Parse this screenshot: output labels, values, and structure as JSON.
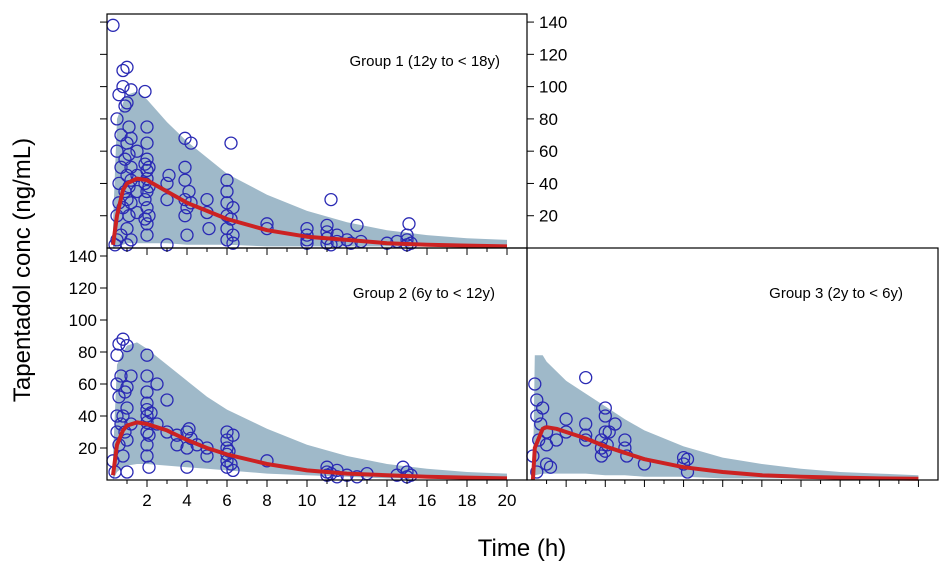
{
  "figure": {
    "ylabel": "Tapentadol conc (ng/mL)",
    "xlabel": "Time (h)"
  },
  "colors": {
    "band": "#9fb9c9",
    "median": "#cc2222",
    "points": "#2a2ab4",
    "frame": "#000000"
  },
  "chart_data": [
    {
      "type": "scatter",
      "title": "Group 1 (12y to < 18y)",
      "xlim": [
        0,
        21
      ],
      "ylim": [
        0,
        145
      ],
      "x_ticks": [
        2,
        4,
        6,
        8,
        10,
        12,
        14,
        16,
        18,
        20
      ],
      "y_ticks": [
        20,
        40,
        60,
        80,
        100,
        120,
        140
      ],
      "y_tick_labels": [
        "20",
        "40",
        "60",
        "80",
        "100",
        "120",
        "140"
      ],
      "y_axis_side": "right",
      "x_tick_labels_shown": false,
      "band": {
        "x": [
          0.3,
          0.5,
          0.8,
          1.0,
          1.5,
          2,
          3,
          4,
          5,
          6,
          8,
          10,
          12,
          14,
          16,
          18,
          20
        ],
        "upper": [
          15,
          80,
          90,
          95,
          97,
          92,
          78,
          66,
          56,
          46,
          33,
          23,
          16,
          11,
          8,
          6,
          5
        ],
        "lower": [
          0,
          1,
          2,
          3,
          3,
          3,
          3,
          2,
          2,
          2,
          1,
          1,
          1,
          1,
          1,
          1,
          1
        ]
      },
      "median": {
        "x": [
          0.3,
          0.5,
          0.8,
          1.0,
          1.5,
          2,
          3,
          4,
          5,
          6,
          8,
          10,
          12,
          14,
          16,
          18,
          20
        ],
        "y": [
          2,
          20,
          36,
          40,
          43,
          42,
          35,
          28,
          23,
          18,
          11,
          7,
          5,
          3,
          2,
          1.5,
          1
        ]
      },
      "points": [
        [
          0.3,
          138
        ],
        [
          0.4,
          2
        ],
        [
          0.5,
          5
        ],
        [
          0.5,
          20
        ],
        [
          0.5,
          60
        ],
        [
          0.5,
          80
        ],
        [
          0.6,
          28
        ],
        [
          0.6,
          40
        ],
        [
          0.6,
          95
        ],
        [
          0.7,
          8
        ],
        [
          0.7,
          50
        ],
        [
          0.7,
          70
        ],
        [
          0.8,
          25
        ],
        [
          0.8,
          100
        ],
        [
          0.8,
          110
        ],
        [
          0.9,
          35
        ],
        [
          0.9,
          55
        ],
        [
          0.9,
          88
        ],
        [
          1.0,
          2
        ],
        [
          1.0,
          12
        ],
        [
          1.0,
          30
        ],
        [
          1.0,
          45
        ],
        [
          1.0,
          65
        ],
        [
          1.0,
          90
        ],
        [
          1.0,
          112
        ],
        [
          1.1,
          20
        ],
        [
          1.1,
          38
        ],
        [
          1.1,
          58
        ],
        [
          1.1,
          75
        ],
        [
          1.2,
          5
        ],
        [
          1.2,
          28
        ],
        [
          1.2,
          42
        ],
        [
          1.2,
          50
        ],
        [
          1.2,
          68
        ],
        [
          1.2,
          98
        ],
        [
          1.5,
          22
        ],
        [
          1.5,
          35
        ],
        [
          1.5,
          45
        ],
        [
          1.5,
          60
        ],
        [
          1.9,
          18
        ],
        [
          1.9,
          30
        ],
        [
          1.9,
          40
        ],
        [
          1.9,
          52
        ],
        [
          1.9,
          97
        ],
        [
          2.0,
          8
        ],
        [
          2.0,
          15
        ],
        [
          2.0,
          25
        ],
        [
          2.0,
          35
        ],
        [
          2.0,
          43
        ],
        [
          2.0,
          48
        ],
        [
          2.0,
          55
        ],
        [
          2.0,
          65
        ],
        [
          2.0,
          75
        ],
        [
          2.1,
          20
        ],
        [
          2.1,
          38
        ],
        [
          2.1,
          50
        ],
        [
          3.0,
          30
        ],
        [
          3.0,
          40
        ],
        [
          3.1,
          45
        ],
        [
          3.0,
          2
        ],
        [
          3.9,
          20
        ],
        [
          3.9,
          30
        ],
        [
          3.9,
          42
        ],
        [
          3.9,
          50
        ],
        [
          3.9,
          68
        ],
        [
          4.0,
          8
        ],
        [
          4.0,
          25
        ],
        [
          4.1,
          35
        ],
        [
          4.2,
          65
        ],
        [
          4.2,
          28
        ],
        [
          5.0,
          22
        ],
        [
          5.0,
          30
        ],
        [
          5.1,
          12
        ],
        [
          6.0,
          5
        ],
        [
          6.0,
          12
        ],
        [
          6.0,
          20
        ],
        [
          6.0,
          28
        ],
        [
          6.0,
          35
        ],
        [
          6.0,
          42
        ],
        [
          6.2,
          65
        ],
        [
          6.2,
          18
        ],
        [
          6.3,
          8
        ],
        [
          6.3,
          25
        ],
        [
          6.3,
          3
        ],
        [
          8.0,
          15
        ],
        [
          8.0,
          12
        ],
        [
          10.0,
          5
        ],
        [
          10.0,
          8
        ],
        [
          10.0,
          12
        ],
        [
          10.0,
          3
        ],
        [
          11.0,
          3
        ],
        [
          11.0,
          6
        ],
        [
          11.0,
          10
        ],
        [
          11.0,
          14
        ],
        [
          11.2,
          2
        ],
        [
          11.2,
          30
        ],
        [
          11.5,
          8
        ],
        [
          11.5,
          4
        ],
        [
          12.0,
          5
        ],
        [
          12.2,
          3
        ],
        [
          12.5,
          14
        ],
        [
          12.7,
          4
        ],
        [
          14.0,
          3
        ],
        [
          14.5,
          4
        ],
        [
          15.0,
          2
        ],
        [
          15.0,
          5
        ],
        [
          15.0,
          8
        ],
        [
          15.1,
          15
        ],
        [
          15.2,
          3
        ]
      ]
    },
    {
      "type": "scatter",
      "title": "Group 2 (6y to < 12y)",
      "xlim": [
        0,
        21
      ],
      "ylim": [
        0,
        145
      ],
      "x_ticks": [
        2,
        4,
        6,
        8,
        10,
        12,
        14,
        16,
        18,
        20
      ],
      "x_tick_labels": [
        "2",
        "4",
        "6",
        "8",
        "10",
        "12",
        "14",
        "16",
        "18",
        "20"
      ],
      "y_ticks": [
        20,
        40,
        60,
        80,
        100,
        120,
        140
      ],
      "y_tick_labels": [
        "20",
        "40",
        "60",
        "80",
        "100",
        "120",
        "140"
      ],
      "y_axis_side": "left",
      "band": {
        "x": [
          0.3,
          0.5,
          0.8,
          1.0,
          1.5,
          2,
          3,
          4,
          5,
          6,
          8,
          10,
          12,
          14,
          16,
          18,
          20
        ],
        "upper": [
          15,
          72,
          80,
          84,
          86,
          82,
          72,
          62,
          52,
          44,
          32,
          22,
          15,
          10,
          7,
          5,
          4
        ],
        "lower": [
          0,
          5,
          8,
          9,
          10,
          10,
          9,
          8,
          7,
          6,
          4,
          3,
          2,
          1,
          1,
          1,
          1
        ]
      },
      "median": {
        "x": [
          0.3,
          0.5,
          0.8,
          1.0,
          1.5,
          2,
          3,
          4,
          5,
          6,
          8,
          10,
          12,
          14,
          16,
          18,
          20
        ],
        "y": [
          3,
          22,
          31,
          34,
          36,
          35,
          31,
          25,
          20,
          16,
          10,
          6,
          4,
          3,
          2,
          1.5,
          1
        ]
      },
      "points": [
        [
          0.3,
          12
        ],
        [
          0.4,
          5
        ],
        [
          0.5,
          30
        ],
        [
          0.5,
          40
        ],
        [
          0.5,
          60
        ],
        [
          0.5,
          78
        ],
        [
          0.6,
          22
        ],
        [
          0.6,
          52
        ],
        [
          0.6,
          85
        ],
        [
          0.7,
          35
        ],
        [
          0.7,
          65
        ],
        [
          0.8,
          15
        ],
        [
          0.8,
          40
        ],
        [
          0.8,
          88
        ],
        [
          0.9,
          30
        ],
        [
          0.9,
          55
        ],
        [
          1.0,
          5
        ],
        [
          1.0,
          25
        ],
        [
          1.0,
          45
        ],
        [
          1.0,
          58
        ],
        [
          1.0,
          84
        ],
        [
          1.2,
          35
        ],
        [
          1.2,
          65
        ],
        [
          2.0,
          15
        ],
        [
          2.0,
          22
        ],
        [
          2.0,
          30
        ],
        [
          2.0,
          36
        ],
        [
          2.0,
          40
        ],
        [
          2.0,
          44
        ],
        [
          2.0,
          48
        ],
        [
          2.0,
          55
        ],
        [
          2.0,
          65
        ],
        [
          2.0,
          78
        ],
        [
          2.1,
          8
        ],
        [
          2.1,
          28
        ],
        [
          2.2,
          42
        ],
        [
          2.5,
          60
        ],
        [
          2.5,
          35
        ],
        [
          3.0,
          50
        ],
        [
          3.0,
          30
        ],
        [
          3.5,
          22
        ],
        [
          3.5,
          28
        ],
        [
          4.0,
          8
        ],
        [
          4.0,
          20
        ],
        [
          4.0,
          30
        ],
        [
          4.1,
          32
        ],
        [
          4.2,
          26
        ],
        [
          4.5,
          22
        ],
        [
          5.0,
          15
        ],
        [
          5.0,
          20
        ],
        [
          6.0,
          8
        ],
        [
          6.0,
          12
        ],
        [
          6.0,
          16
        ],
        [
          6.0,
          20
        ],
        [
          6.0,
          25
        ],
        [
          6.0,
          30
        ],
        [
          6.1,
          18
        ],
        [
          6.2,
          10
        ],
        [
          6.3,
          28
        ],
        [
          6.3,
          6
        ],
        [
          8.0,
          12
        ],
        [
          11.0,
          3
        ],
        [
          11.0,
          5
        ],
        [
          11.0,
          8
        ],
        [
          11.2,
          4
        ],
        [
          11.5,
          6
        ],
        [
          11.5,
          2
        ],
        [
          12.0,
          3
        ],
        [
          12.5,
          2
        ],
        [
          13.0,
          4
        ],
        [
          14.5,
          3
        ],
        [
          14.8,
          8
        ],
        [
          15.0,
          2
        ],
        [
          15.0,
          5
        ],
        [
          15.2,
          3
        ]
      ]
    },
    {
      "type": "scatter",
      "title": "Group 3 (2y to < 6y)",
      "xlim": [
        0,
        21
      ],
      "ylim": [
        0,
        145
      ],
      "x_ticks": [
        2,
        4,
        6,
        8,
        10,
        12,
        14,
        16,
        18,
        20
      ],
      "x_tick_labels_shown": false,
      "y_ticks": [
        20,
        40,
        60,
        80,
        100,
        120,
        140
      ],
      "y_axis_side": "none",
      "band": {
        "x": [
          0.3,
          0.4,
          0.8,
          1.0,
          1.5,
          2,
          3,
          4,
          5,
          6,
          8,
          10,
          12,
          14,
          16,
          18,
          20
        ],
        "upper": [
          0,
          78,
          78,
          74,
          68,
          62,
          54,
          46,
          38,
          31,
          21,
          14,
          10,
          7,
          5,
          4,
          3
        ],
        "lower": [
          0,
          3,
          4,
          4,
          4,
          4,
          4,
          3,
          3,
          2,
          2,
          1,
          1,
          1,
          1,
          1,
          1
        ]
      },
      "median": {
        "x": [
          0.3,
          0.4,
          0.8,
          1.0,
          1.5,
          2,
          3,
          4,
          5,
          6,
          8,
          10,
          12,
          14,
          16,
          18,
          20
        ],
        "y": [
          0,
          20,
          32,
          33,
          32,
          30,
          26,
          21,
          17,
          13,
          8,
          5,
          3,
          2,
          1.5,
          1,
          0.8
        ]
      },
      "points": [
        [
          0.3,
          15
        ],
        [
          0.4,
          60
        ],
        [
          0.5,
          5
        ],
        [
          0.5,
          40
        ],
        [
          0.5,
          50
        ],
        [
          0.6,
          25
        ],
        [
          0.7,
          35
        ],
        [
          0.8,
          45
        ],
        [
          1.0,
          10
        ],
        [
          1.0,
          22
        ],
        [
          1.0,
          30
        ],
        [
          1.2,
          8
        ],
        [
          1.5,
          25
        ],
        [
          2.0,
          30
        ],
        [
          2.0,
          38
        ],
        [
          3.0,
          64
        ],
        [
          3.0,
          35
        ],
        [
          3.0,
          25
        ],
        [
          3.0,
          28
        ],
        [
          3.8,
          15
        ],
        [
          3.8,
          20
        ],
        [
          3.8,
          25
        ],
        [
          4.0,
          18
        ],
        [
          4.0,
          30
        ],
        [
          4.0,
          45
        ],
        [
          4.0,
          40
        ],
        [
          4.1,
          22
        ],
        [
          4.2,
          30
        ],
        [
          4.5,
          35
        ],
        [
          5.0,
          20
        ],
        [
          5.0,
          25
        ],
        [
          5.1,
          15
        ],
        [
          6.0,
          10
        ],
        [
          8.0,
          10
        ],
        [
          8.0,
          14
        ],
        [
          8.2,
          5
        ],
        [
          8.2,
          13
        ]
      ]
    }
  ]
}
